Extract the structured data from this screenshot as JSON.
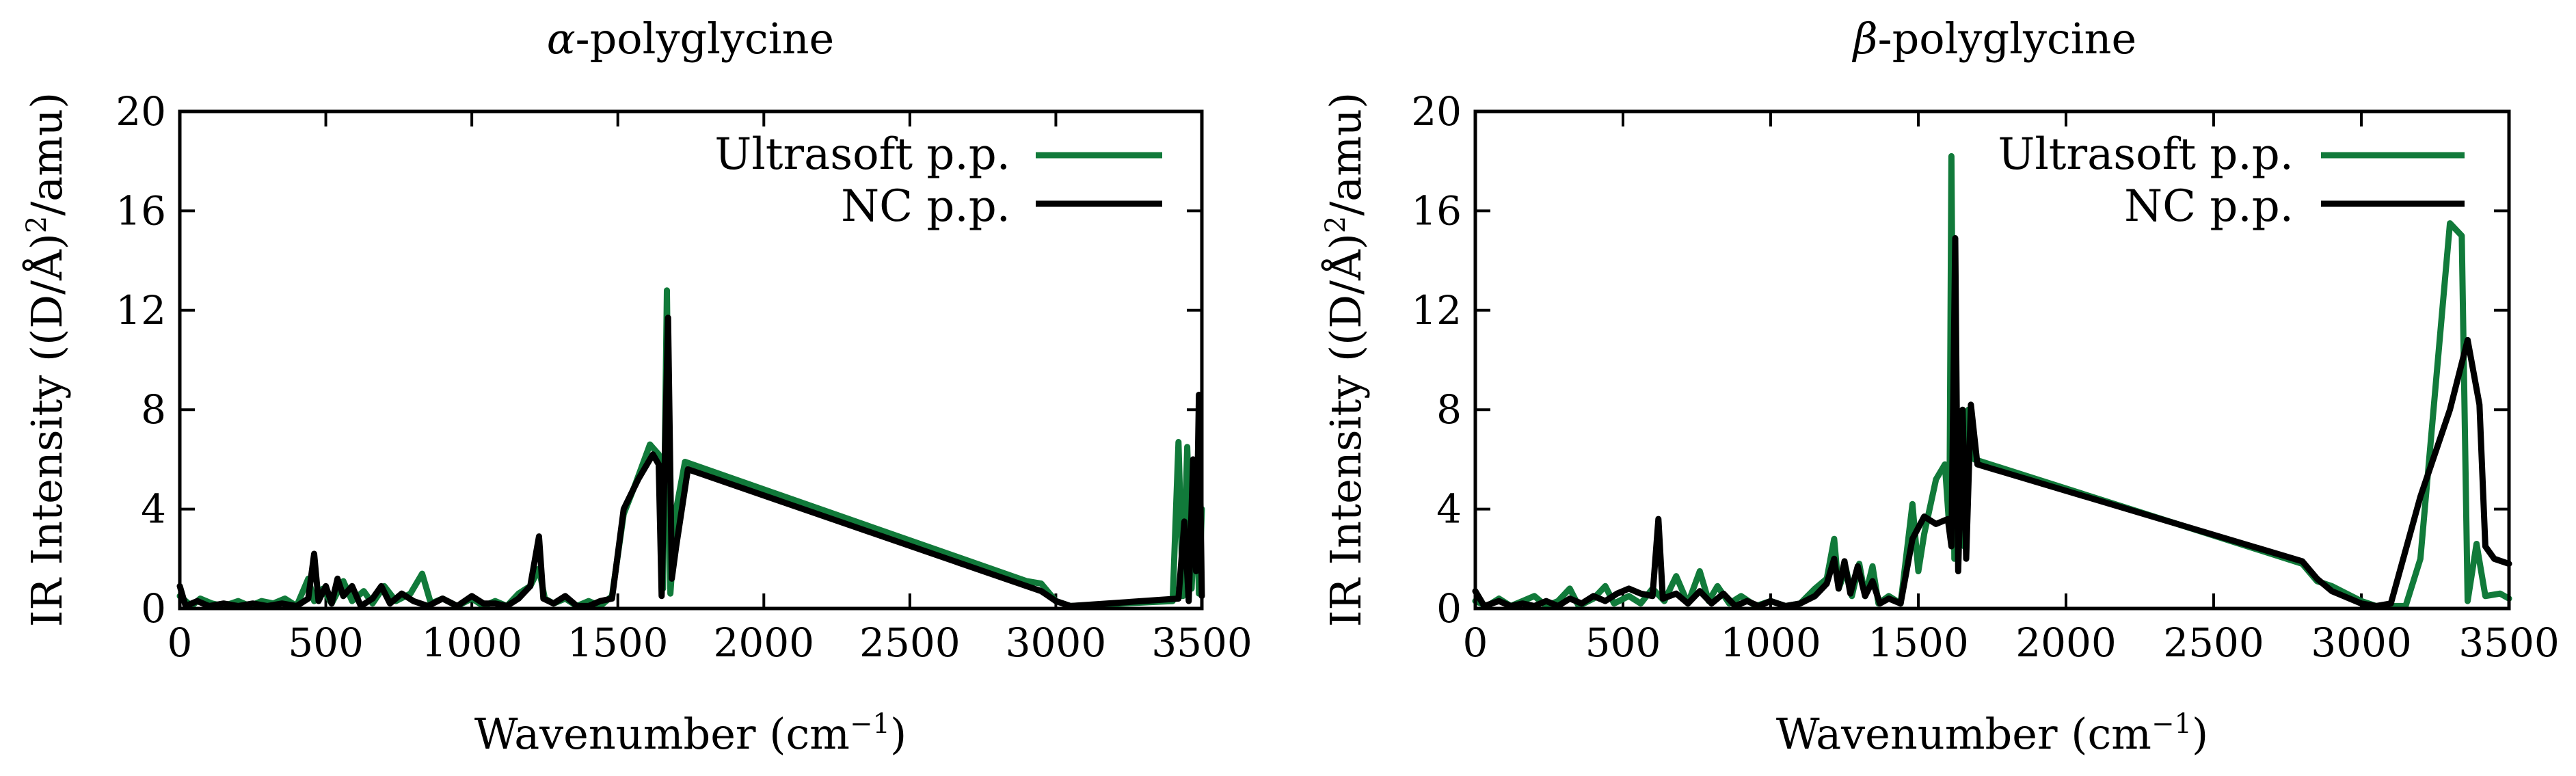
{
  "colors": {
    "ultrasoft": "#117a3a",
    "nc": "#000000"
  },
  "chart_data": [
    {
      "type": "line",
      "title_symbol": "α",
      "title_text": "-polyglycine",
      "xlabel_main": "Wavenumber (cm",
      "xlabel_exp": "−1",
      "xlabel_end": ")",
      "ylabel_main": "IR Intensity ((D/Å)",
      "ylabel_exp": "2",
      "ylabel_end": "/amu)",
      "xlim": [
        0,
        3500
      ],
      "ylim": [
        0,
        20
      ],
      "xticks": [
        0,
        500,
        1000,
        1500,
        2000,
        2500,
        3000,
        3500
      ],
      "yticks": [
        0,
        4,
        8,
        12,
        16,
        20
      ],
      "legend_position": "top-right",
      "series": [
        {
          "name": "Ultrasoft p.p.",
          "color_key": "ultrasoft",
          "points": [
            [
              0,
              0.5
            ],
            [
              40,
              0.1
            ],
            [
              70,
              0.4
            ],
            [
              110,
              0.2
            ],
            [
              150,
              0.1
            ],
            [
              200,
              0.3
            ],
            [
              240,
              0.1
            ],
            [
              280,
              0.3
            ],
            [
              320,
              0.2
            ],
            [
              360,
              0.4
            ],
            [
              400,
              0.1
            ],
            [
              440,
              1.2
            ],
            [
              460,
              0.3
            ],
            [
              490,
              0.8
            ],
            [
              520,
              0.2
            ],
            [
              560,
              1.1
            ],
            [
              590,
              0.3
            ],
            [
              630,
              0.7
            ],
            [
              660,
              0.2
            ],
            [
              700,
              0.9
            ],
            [
              740,
              0.3
            ],
            [
              790,
              0.6
            ],
            [
              830,
              1.4
            ],
            [
              860,
              0.2
            ],
            [
              900,
              0.4
            ],
            [
              950,
              0.1
            ],
            [
              1000,
              0.4
            ],
            [
              1040,
              0.1
            ],
            [
              1080,
              0.3
            ],
            [
              1120,
              0.1
            ],
            [
              1160,
              0.6
            ],
            [
              1200,
              0.9
            ],
            [
              1230,
              1.6
            ],
            [
              1250,
              0.4
            ],
            [
              1280,
              0.2
            ],
            [
              1320,
              0.4
            ],
            [
              1360,
              0.1
            ],
            [
              1400,
              0.3
            ],
            [
              1440,
              0.1
            ],
            [
              1480,
              0.5
            ],
            [
              1520,
              3.8
            ],
            [
              1560,
              5.0
            ],
            [
              1610,
              6.6
            ],
            [
              1640,
              6.2
            ],
            [
              1655,
              0.8
            ],
            [
              1668,
              12.8
            ],
            [
              1680,
              0.6
            ],
            [
              1700,
              4.0
            ],
            [
              1730,
              5.9
            ],
            [
              2900,
              1.1
            ],
            [
              2950,
              1.0
            ],
            [
              3000,
              0.3
            ],
            [
              3050,
              0.1
            ],
            [
              3400,
              0.3
            ],
            [
              3420,
              6.7
            ],
            [
              3435,
              0.5
            ],
            [
              3450,
              6.5
            ],
            [
              3465,
              0.8
            ],
            [
              3480,
              5.0
            ],
            [
              3490,
              0.6
            ],
            [
              3500,
              4.0
            ]
          ]
        },
        {
          "name": "NC p.p.",
          "color_key": "nc",
          "points": [
            [
              0,
              0.9
            ],
            [
              20,
              0.1
            ],
            [
              60,
              0.3
            ],
            [
              100,
              0.1
            ],
            [
              150,
              0.2
            ],
            [
              200,
              0.1
            ],
            [
              250,
              0.2
            ],
            [
              300,
              0.1
            ],
            [
              350,
              0.2
            ],
            [
              400,
              0.1
            ],
            [
              440,
              0.4
            ],
            [
              460,
              2.2
            ],
            [
              475,
              0.3
            ],
            [
              500,
              0.9
            ],
            [
              520,
              0.2
            ],
            [
              540,
              1.2
            ],
            [
              560,
              0.5
            ],
            [
              590,
              0.9
            ],
            [
              620,
              0.1
            ],
            [
              660,
              0.4
            ],
            [
              690,
              0.9
            ],
            [
              720,
              0.2
            ],
            [
              760,
              0.6
            ],
            [
              800,
              0.3
            ],
            [
              850,
              0.1
            ],
            [
              900,
              0.4
            ],
            [
              950,
              0.1
            ],
            [
              1000,
              0.5
            ],
            [
              1040,
              0.2
            ],
            [
              1080,
              0.2
            ],
            [
              1120,
              0.1
            ],
            [
              1160,
              0.4
            ],
            [
              1200,
              0.9
            ],
            [
              1230,
              2.9
            ],
            [
              1245,
              0.4
            ],
            [
              1280,
              0.2
            ],
            [
              1320,
              0.5
            ],
            [
              1360,
              0.1
            ],
            [
              1400,
              0.1
            ],
            [
              1440,
              0.3
            ],
            [
              1480,
              0.4
            ],
            [
              1520,
              4.0
            ],
            [
              1570,
              5.2
            ],
            [
              1620,
              6.2
            ],
            [
              1640,
              5.8
            ],
            [
              1650,
              0.5
            ],
            [
              1672,
              11.7
            ],
            [
              1685,
              1.2
            ],
            [
              1700,
              2.5
            ],
            [
              1740,
              5.6
            ],
            [
              2900,
              0.9
            ],
            [
              2950,
              0.7
            ],
            [
              3000,
              0.3
            ],
            [
              3050,
              0.1
            ],
            [
              3420,
              0.4
            ],
            [
              3440,
              3.5
            ],
            [
              3455,
              0.3
            ],
            [
              3470,
              6.0
            ],
            [
              3480,
              1.5
            ],
            [
              3490,
              8.6
            ],
            [
              3500,
              0.5
            ]
          ]
        }
      ]
    },
    {
      "type": "line",
      "title_symbol": "β",
      "title_text": "-polyglycine",
      "xlabel_main": "Wavenumber (cm",
      "xlabel_exp": "−1",
      "xlabel_end": ")",
      "ylabel_main": "IR Intensity ((D/Å)",
      "ylabel_exp": "2",
      "ylabel_end": "/amu)",
      "xlim": [
        0,
        3500
      ],
      "ylim": [
        0,
        20
      ],
      "xticks": [
        0,
        500,
        1000,
        1500,
        2000,
        2500,
        3000,
        3500
      ],
      "yticks": [
        0,
        4,
        8,
        12,
        16,
        20
      ],
      "legend_position": "top-right",
      "series": [
        {
          "name": "Ultrasoft p.p.",
          "color_key": "ultrasoft",
          "points": [
            [
              0,
              0.3
            ],
            [
              40,
              0.1
            ],
            [
              80,
              0.4
            ],
            [
              120,
              0.1
            ],
            [
              160,
              0.3
            ],
            [
              200,
              0.5
            ],
            [
              240,
              0.1
            ],
            [
              280,
              0.3
            ],
            [
              320,
              0.8
            ],
            [
              350,
              0.1
            ],
            [
              400,
              0.4
            ],
            [
              440,
              0.9
            ],
            [
              470,
              0.2
            ],
            [
              520,
              0.5
            ],
            [
              560,
              0.2
            ],
            [
              600,
              0.8
            ],
            [
              640,
              0.3
            ],
            [
              680,
              1.3
            ],
            [
              720,
              0.2
            ],
            [
              760,
              1.5
            ],
            [
              790,
              0.3
            ],
            [
              820,
              0.9
            ],
            [
              860,
              0.2
            ],
            [
              900,
              0.5
            ],
            [
              950,
              0.1
            ],
            [
              1000,
              0.3
            ],
            [
              1050,
              0.1
            ],
            [
              1100,
              0.2
            ],
            [
              1150,
              0.8
            ],
            [
              1190,
              1.2
            ],
            [
              1215,
              2.8
            ],
            [
              1230,
              0.8
            ],
            [
              1255,
              1.6
            ],
            [
              1275,
              0.5
            ],
            [
              1300,
              1.8
            ],
            [
              1320,
              0.5
            ],
            [
              1345,
              1.7
            ],
            [
              1365,
              0.2
            ],
            [
              1400,
              0.5
            ],
            [
              1440,
              0.2
            ],
            [
              1480,
              4.2
            ],
            [
              1500,
              1.5
            ],
            [
              1520,
              3.0
            ],
            [
              1560,
              5.2
            ],
            [
              1590,
              5.8
            ],
            [
              1605,
              3.2
            ],
            [
              1612,
              18.2
            ],
            [
              1622,
              2.0
            ],
            [
              1640,
              6.4
            ],
            [
              1655,
              2.5
            ],
            [
              1670,
              8.0
            ],
            [
              1690,
              6.0
            ],
            [
              2800,
              1.8
            ],
            [
              2850,
              1.1
            ],
            [
              2900,
              0.9
            ],
            [
              3000,
              0.3
            ],
            [
              3050,
              0.1
            ],
            [
              3150,
              0.1
            ],
            [
              3200,
              2.0
            ],
            [
              3300,
              15.5
            ],
            [
              3340,
              15.0
            ],
            [
              3360,
              0.3
            ],
            [
              3390,
              2.6
            ],
            [
              3420,
              0.5
            ],
            [
              3470,
              0.6
            ],
            [
              3500,
              0.4
            ]
          ]
        },
        {
          "name": "NC p.p.",
          "color_key": "nc",
          "points": [
            [
              0,
              0.7
            ],
            [
              30,
              0.1
            ],
            [
              80,
              0.3
            ],
            [
              120,
              0.1
            ],
            [
              160,
              0.2
            ],
            [
              200,
              0.1
            ],
            [
              240,
              0.3
            ],
            [
              280,
              0.1
            ],
            [
              320,
              0.4
            ],
            [
              360,
              0.2
            ],
            [
              400,
              0.5
            ],
            [
              440,
              0.3
            ],
            [
              480,
              0.6
            ],
            [
              520,
              0.8
            ],
            [
              560,
              0.6
            ],
            [
              600,
              0.5
            ],
            [
              620,
              3.6
            ],
            [
              635,
              0.4
            ],
            [
              680,
              0.6
            ],
            [
              720,
              0.2
            ],
            [
              760,
              0.7
            ],
            [
              800,
              0.2
            ],
            [
              840,
              0.6
            ],
            [
              880,
              0.1
            ],
            [
              920,
              0.3
            ],
            [
              960,
              0.1
            ],
            [
              1000,
              0.3
            ],
            [
              1050,
              0.1
            ],
            [
              1100,
              0.2
            ],
            [
              1150,
              0.5
            ],
            [
              1190,
              1.0
            ],
            [
              1215,
              2.0
            ],
            [
              1230,
              0.8
            ],
            [
              1250,
              1.9
            ],
            [
              1270,
              0.6
            ],
            [
              1295,
              1.7
            ],
            [
              1320,
              0.5
            ],
            [
              1345,
              1.1
            ],
            [
              1370,
              0.2
            ],
            [
              1400,
              0.4
            ],
            [
              1440,
              0.2
            ],
            [
              1480,
              2.8
            ],
            [
              1520,
              3.7
            ],
            [
              1560,
              3.4
            ],
            [
              1600,
              3.6
            ],
            [
              1612,
              2.5
            ],
            [
              1625,
              14.9
            ],
            [
              1635,
              1.5
            ],
            [
              1650,
              8.0
            ],
            [
              1662,
              2.0
            ],
            [
              1678,
              8.2
            ],
            [
              1700,
              5.8
            ],
            [
              2800,
              1.9
            ],
            [
              2850,
              1.2
            ],
            [
              2900,
              0.7
            ],
            [
              3000,
              0.2
            ],
            [
              3050,
              0.1
            ],
            [
              3100,
              0.2
            ],
            [
              3200,
              4.5
            ],
            [
              3300,
              8.0
            ],
            [
              3360,
              10.8
            ],
            [
              3400,
              8.2
            ],
            [
              3420,
              2.5
            ],
            [
              3450,
              2.0
            ],
            [
              3500,
              1.8
            ]
          ]
        }
      ]
    }
  ]
}
